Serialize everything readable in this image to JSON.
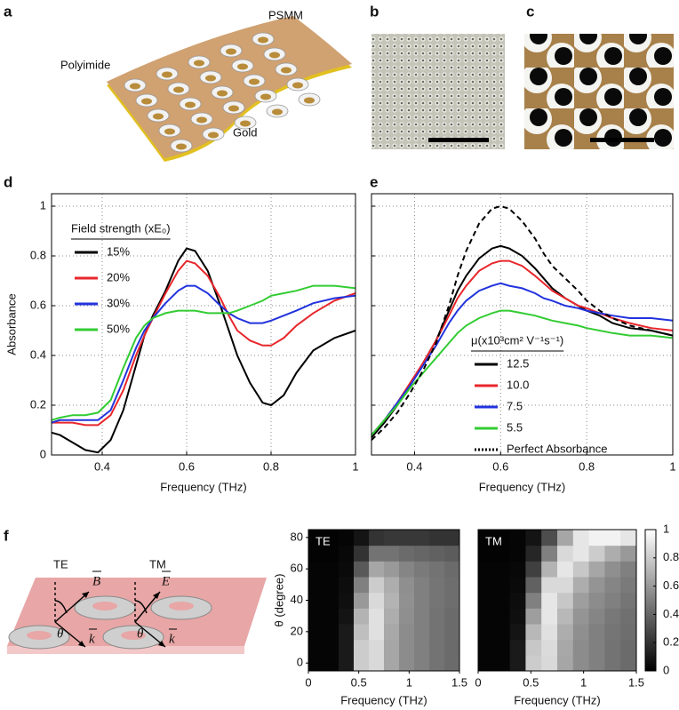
{
  "figure": {
    "panel_labels": [
      "a",
      "b",
      "c",
      "d",
      "e",
      "f"
    ],
    "a_labels": [
      "Polyimide",
      "PSMM",
      "Gold"
    ],
    "f_labels": {
      "te": "TE",
      "tm": "TM",
      "b": "B",
      "e": "E",
      "k1": "k",
      "k2": "k",
      "theta1": "θ",
      "theta2": "θ"
    }
  },
  "chart_data": [
    {
      "type": "line",
      "legend": "upper left",
      "legend_title": "Field strength (xE₀)",
      "x": [
        0.28,
        0.3,
        0.33,
        0.36,
        0.39,
        0.42,
        0.45,
        0.48,
        0.5,
        0.52,
        0.55,
        0.58,
        0.6,
        0.62,
        0.65,
        0.68,
        0.7,
        0.72,
        0.75,
        0.78,
        0.8,
        0.83,
        0.86,
        0.9,
        0.95,
        1.0
      ],
      "series": [
        {
          "name": "15%",
          "color": "#000000",
          "values": [
            0.09,
            0.08,
            0.05,
            0.02,
            0.01,
            0.06,
            0.18,
            0.36,
            0.48,
            0.56,
            0.66,
            0.78,
            0.83,
            0.82,
            0.74,
            0.6,
            0.5,
            0.4,
            0.29,
            0.21,
            0.2,
            0.24,
            0.33,
            0.42,
            0.47,
            0.5
          ]
        },
        {
          "name": "20%",
          "color": "#e8262b",
          "values": [
            0.13,
            0.13,
            0.13,
            0.12,
            0.12,
            0.16,
            0.26,
            0.4,
            0.48,
            0.55,
            0.65,
            0.74,
            0.78,
            0.77,
            0.72,
            0.63,
            0.56,
            0.5,
            0.46,
            0.44,
            0.44,
            0.47,
            0.52,
            0.57,
            0.62,
            0.65
          ]
        },
        {
          "name": "30%",
          "color": "#2233dd",
          "values": [
            0.13,
            0.14,
            0.14,
            0.14,
            0.14,
            0.18,
            0.3,
            0.43,
            0.5,
            0.55,
            0.61,
            0.66,
            0.68,
            0.68,
            0.65,
            0.6,
            0.57,
            0.55,
            0.53,
            0.53,
            0.54,
            0.56,
            0.58,
            0.61,
            0.63,
            0.64
          ]
        },
        {
          "name": "50%",
          "color": "#33cc33",
          "values": [
            0.14,
            0.15,
            0.16,
            0.16,
            0.17,
            0.22,
            0.35,
            0.47,
            0.52,
            0.55,
            0.57,
            0.58,
            0.58,
            0.58,
            0.57,
            0.57,
            0.57,
            0.58,
            0.6,
            0.62,
            0.64,
            0.65,
            0.66,
            0.68,
            0.68,
            0.67
          ]
        }
      ],
      "xlabel": "Frequency (THz)",
      "ylabel": "Absorbance",
      "xlim": [
        0.28,
        1
      ],
      "ylim": [
        0,
        1.05
      ],
      "xticks": [
        0.4,
        0.6,
        0.8,
        1
      ],
      "yticks": [
        0,
        0.2,
        0.4,
        0.6,
        0.8,
        1
      ],
      "grid": true,
      "ytick_labels": true
    },
    {
      "type": "line",
      "legend": "lower right",
      "legend_title": "μ(x10³cm² V⁻¹s⁻¹)",
      "x": [
        0.3,
        0.33,
        0.36,
        0.39,
        0.42,
        0.45,
        0.48,
        0.5,
        0.52,
        0.55,
        0.58,
        0.6,
        0.62,
        0.65,
        0.68,
        0.7,
        0.72,
        0.75,
        0.78,
        0.8,
        0.83,
        0.86,
        0.9,
        0.95,
        1.0
      ],
      "series": [
        {
          "name": "12.5",
          "color": "#000000",
          "style": "solid",
          "values": [
            0.07,
            0.13,
            0.2,
            0.28,
            0.37,
            0.46,
            0.58,
            0.66,
            0.72,
            0.79,
            0.83,
            0.84,
            0.83,
            0.8,
            0.75,
            0.71,
            0.67,
            0.63,
            0.6,
            0.58,
            0.56,
            0.53,
            0.51,
            0.5,
            0.48
          ]
        },
        {
          "name": "10.0",
          "color": "#e8262b",
          "style": "solid",
          "values": [
            0.08,
            0.14,
            0.21,
            0.29,
            0.37,
            0.46,
            0.56,
            0.63,
            0.68,
            0.74,
            0.77,
            0.78,
            0.78,
            0.76,
            0.72,
            0.69,
            0.66,
            0.63,
            0.6,
            0.59,
            0.57,
            0.55,
            0.53,
            0.51,
            0.5
          ]
        },
        {
          "name": "7.5",
          "color": "#2233dd",
          "style": "solid",
          "values": [
            0.08,
            0.14,
            0.21,
            0.28,
            0.36,
            0.44,
            0.53,
            0.58,
            0.62,
            0.66,
            0.68,
            0.69,
            0.68,
            0.67,
            0.65,
            0.63,
            0.62,
            0.6,
            0.59,
            0.58,
            0.57,
            0.56,
            0.55,
            0.55,
            0.54
          ]
        },
        {
          "name": "5.5",
          "color": "#33cc33",
          "style": "solid",
          "values": [
            0.08,
            0.14,
            0.2,
            0.27,
            0.33,
            0.39,
            0.45,
            0.49,
            0.52,
            0.55,
            0.57,
            0.58,
            0.58,
            0.57,
            0.56,
            0.55,
            0.54,
            0.53,
            0.52,
            0.51,
            0.5,
            0.49,
            0.48,
            0.48,
            0.47
          ]
        },
        {
          "name": "Perfect Absorbance",
          "color": "#000000",
          "style": "dashed",
          "values": [
            0.06,
            0.11,
            0.17,
            0.25,
            0.34,
            0.45,
            0.6,
            0.72,
            0.82,
            0.93,
            0.99,
            1.0,
            0.99,
            0.94,
            0.87,
            0.81,
            0.76,
            0.71,
            0.66,
            0.62,
            0.58,
            0.55,
            0.52,
            0.5,
            0.48
          ]
        }
      ],
      "xlabel": "Frequency (THz)",
      "xlim": [
        0.3,
        1
      ],
      "ylim": [
        0,
        1.05
      ],
      "xticks": [
        0.4,
        0.6,
        0.8,
        1
      ],
      "yticks": [
        0,
        0.2,
        0.4,
        0.6,
        0.8,
        1
      ],
      "grid": true,
      "ytick_labels": false
    },
    {
      "type": "heatmap",
      "title": "TE",
      "x": [
        0.075,
        0.225,
        0.375,
        0.525,
        0.675,
        0.825,
        0.975,
        1.125,
        1.275,
        1.425
      ],
      "y": [
        0,
        10,
        20,
        30,
        40,
        50,
        60,
        70,
        80
      ],
      "z": [
        [
          0.02,
          0.02,
          0.1,
          0.8,
          0.85,
          0.65,
          0.55,
          0.5,
          0.45,
          0.42
        ],
        [
          0.02,
          0.02,
          0.1,
          0.8,
          0.85,
          0.65,
          0.55,
          0.5,
          0.45,
          0.42
        ],
        [
          0.02,
          0.02,
          0.1,
          0.75,
          0.88,
          0.66,
          0.55,
          0.5,
          0.45,
          0.42
        ],
        [
          0.02,
          0.02,
          0.08,
          0.7,
          0.88,
          0.68,
          0.56,
          0.5,
          0.45,
          0.42
        ],
        [
          0.02,
          0.02,
          0.06,
          0.6,
          0.85,
          0.7,
          0.57,
          0.5,
          0.46,
          0.43
        ],
        [
          0.02,
          0.02,
          0.05,
          0.5,
          0.8,
          0.68,
          0.56,
          0.5,
          0.46,
          0.43
        ],
        [
          0.02,
          0.02,
          0.04,
          0.35,
          0.65,
          0.6,
          0.52,
          0.48,
          0.45,
          0.42
        ],
        [
          0.01,
          0.01,
          0.03,
          0.2,
          0.45,
          0.45,
          0.42,
          0.4,
          0.38,
          0.36
        ],
        [
          0.01,
          0.01,
          0.02,
          0.08,
          0.2,
          0.22,
          0.22,
          0.22,
          0.2,
          0.2
        ]
      ],
      "xlim": [
        0,
        1.5
      ],
      "ylim": [
        -5,
        85
      ],
      "xticks": [
        0,
        0.5,
        1,
        1.5
      ],
      "yticks": [
        0,
        20,
        40,
        60,
        80
      ],
      "xlabel": "Frequency (THz)",
      "ylabel": "θ (degree)"
    },
    {
      "type": "heatmap",
      "title": "TM",
      "x": [
        0.075,
        0.225,
        0.375,
        0.525,
        0.675,
        0.825,
        0.975,
        1.125,
        1.275,
        1.425
      ],
      "y": [
        0,
        10,
        20,
        30,
        40,
        50,
        60,
        70,
        80
      ],
      "z": [
        [
          0.02,
          0.02,
          0.1,
          0.8,
          0.85,
          0.65,
          0.55,
          0.5,
          0.45,
          0.42
        ],
        [
          0.02,
          0.02,
          0.1,
          0.78,
          0.86,
          0.66,
          0.55,
          0.5,
          0.45,
          0.42
        ],
        [
          0.02,
          0.02,
          0.08,
          0.72,
          0.88,
          0.68,
          0.56,
          0.5,
          0.46,
          0.43
        ],
        [
          0.02,
          0.02,
          0.06,
          0.62,
          0.9,
          0.72,
          0.58,
          0.52,
          0.47,
          0.44
        ],
        [
          0.02,
          0.02,
          0.05,
          0.5,
          0.9,
          0.78,
          0.62,
          0.55,
          0.5,
          0.46
        ],
        [
          0.02,
          0.02,
          0.04,
          0.38,
          0.85,
          0.85,
          0.68,
          0.58,
          0.52,
          0.48
        ],
        [
          0.02,
          0.02,
          0.03,
          0.25,
          0.7,
          0.9,
          0.78,
          0.65,
          0.56,
          0.5
        ],
        [
          0.01,
          0.01,
          0.02,
          0.15,
          0.5,
          0.85,
          0.9,
          0.8,
          0.68,
          0.6
        ],
        [
          0.01,
          0.01,
          0.02,
          0.08,
          0.3,
          0.65,
          0.9,
          0.95,
          0.95,
          0.9
        ]
      ],
      "xlim": [
        0,
        1.5
      ],
      "ylim": [
        -5,
        85
      ],
      "xticks": [
        0,
        0.5,
        1,
        1.5
      ],
      "xlabel": "Frequency (THz)",
      "colorbar": {
        "lim": [
          0,
          1
        ],
        "ticks": [
          0,
          0.2,
          0.4,
          0.6,
          0.8,
          1
        ]
      }
    }
  ]
}
